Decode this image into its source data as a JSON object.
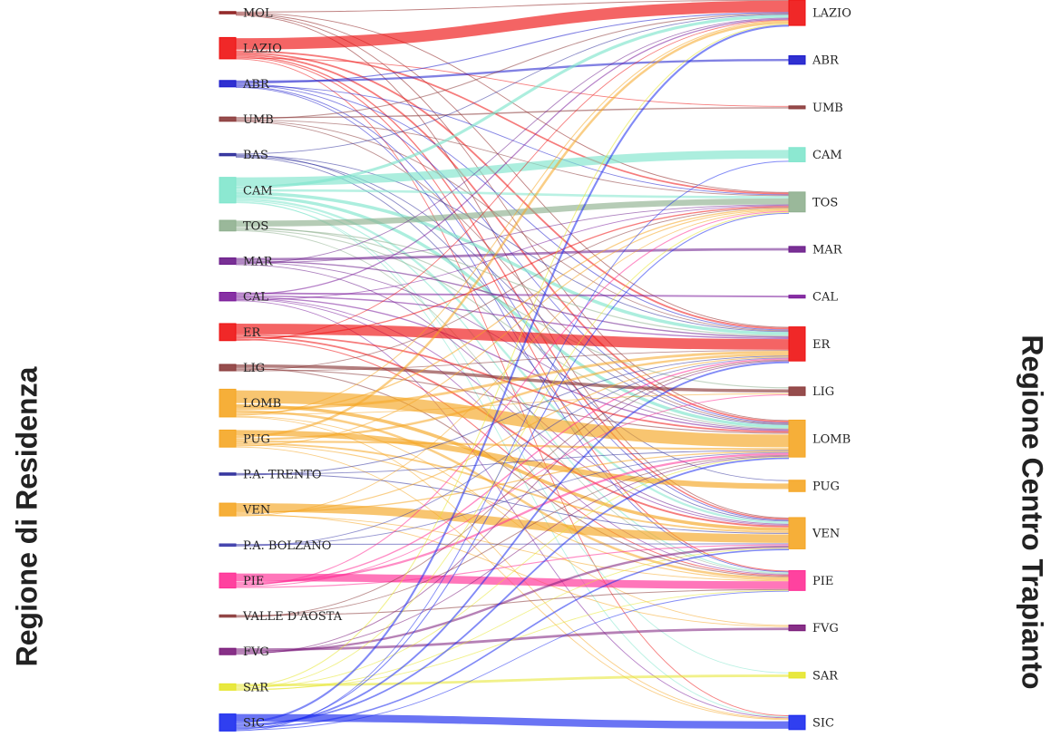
{
  "titles": {
    "left": "Regione di Residenza",
    "right": "Regione Centro Trapianto"
  },
  "chart_data": {
    "type": "sankey",
    "left_nodes": [
      {
        "id": "MOL",
        "label": "MOL",
        "color": "#8b1a1a",
        "value": 1
      },
      {
        "id": "LAZIO",
        "label": "LAZIO",
        "color": "#ee1111",
        "value": 10
      },
      {
        "id": "ABR",
        "label": "ABR",
        "color": "#1a1acc",
        "value": 3
      },
      {
        "id": "UMB",
        "label": "UMB",
        "color": "#8b3a3a",
        "value": 2
      },
      {
        "id": "BAS",
        "label": "BAS",
        "color": "#2a2a99",
        "value": 1
      },
      {
        "id": "CAM",
        "label": "CAM",
        "color": "#7fe5cc",
        "value": 12
      },
      {
        "id": "TOS",
        "label": "TOS",
        "color": "#8fb08f",
        "value": 5
      },
      {
        "id": "MAR",
        "label": "MAR",
        "color": "#6a1a8a",
        "value": 3
      },
      {
        "id": "CAL",
        "label": "CAL",
        "color": "#7a1a9a",
        "value": 4
      },
      {
        "id": "ER",
        "label": "ER",
        "color": "#ee1111",
        "value": 8
      },
      {
        "id": "LIG",
        "label": "LIG",
        "color": "#8b3a3a",
        "value": 3
      },
      {
        "id": "LOMB",
        "label": "LOMB",
        "color": "#f5a623",
        "value": 13
      },
      {
        "id": "PUG",
        "label": "PUG",
        "color": "#f5a623",
        "value": 8
      },
      {
        "id": "P.A. TRENTO",
        "label": "P.A. TRENTO",
        "color": "#2a2a99",
        "value": 1
      },
      {
        "id": "VEN",
        "label": "VEN",
        "color": "#f5a623",
        "value": 6
      },
      {
        "id": "P.A. BOLZANO",
        "label": "P.A. BOLZANO",
        "color": "#3a3aaa",
        "value": 1
      },
      {
        "id": "PIE",
        "label": "PIE",
        "color": "#ff2d95",
        "value": 7
      },
      {
        "id": "VALLE D'AOSTA",
        "label": "VALLE D'AOSTA",
        "color": "#8b3a3a",
        "value": 1
      },
      {
        "id": "FVG",
        "label": "FVG",
        "color": "#7a1a7a",
        "value": 3
      },
      {
        "id": "SAR",
        "label": "SAR",
        "color": "#e5e52a",
        "value": 3
      },
      {
        "id": "SIC",
        "label": "SIC",
        "color": "#1a2aee",
        "value": 8
      }
    ],
    "right_nodes": [
      {
        "id": "LAZIO",
        "label": "LAZIO",
        "color": "#ee1111",
        "value": 9
      },
      {
        "id": "ABR",
        "label": "ABR",
        "color": "#1a1acc",
        "value": 3
      },
      {
        "id": "UMB",
        "label": "UMB",
        "color": "#8b3a3a",
        "value": 1
      },
      {
        "id": "CAM",
        "label": "CAM",
        "color": "#7fe5cc",
        "value": 5
      },
      {
        "id": "TOS",
        "label": "TOS",
        "color": "#8fb08f",
        "value": 7
      },
      {
        "id": "MAR",
        "label": "MAR",
        "color": "#6a1a8a",
        "value": 2
      },
      {
        "id": "CAL",
        "label": "CAL",
        "color": "#7a1a9a",
        "value": 1
      },
      {
        "id": "ER",
        "label": "ER",
        "color": "#ee1111",
        "value": 12
      },
      {
        "id": "LIG",
        "label": "LIG",
        "color": "#8b3a3a",
        "value": 3
      },
      {
        "id": "LOMB",
        "label": "LOMB",
        "color": "#f5a623",
        "value": 13
      },
      {
        "id": "PUG",
        "label": "PUG",
        "color": "#f5a623",
        "value": 4
      },
      {
        "id": "VEN",
        "label": "VEN",
        "color": "#f5a623",
        "value": 11
      },
      {
        "id": "PIE",
        "label": "PIE",
        "color": "#ff2d95",
        "value": 7
      },
      {
        "id": "FVG",
        "label": "FVG",
        "color": "#7a1a7a",
        "value": 2
      },
      {
        "id": "SAR",
        "label": "SAR",
        "color": "#e5e52a",
        "value": 2
      },
      {
        "id": "SIC",
        "label": "SIC",
        "color": "#1a2aee",
        "value": 5
      }
    ],
    "links": [
      {
        "source": "MOL",
        "target": "LAZIO",
        "value": 0.3
      },
      {
        "source": "MOL",
        "target": "TOS",
        "value": 0.2
      },
      {
        "source": "MOL",
        "target": "ER",
        "value": 0.2
      },
      {
        "source": "MOL",
        "target": "LOMB",
        "value": 0.2
      },
      {
        "source": "MOL",
        "target": "VEN",
        "value": 0.1
      },
      {
        "source": "LAZIO",
        "target": "LAZIO",
        "value": 6
      },
      {
        "source": "LAZIO",
        "target": "TOS",
        "value": 0.8
      },
      {
        "source": "LAZIO",
        "target": "ER",
        "value": 0.8
      },
      {
        "source": "LAZIO",
        "target": "LOMB",
        "value": 0.8
      },
      {
        "source": "LAZIO",
        "target": "VEN",
        "value": 0.6
      },
      {
        "source": "LAZIO",
        "target": "PIE",
        "value": 0.5
      },
      {
        "source": "LAZIO",
        "target": "UMB",
        "value": 0.3
      },
      {
        "source": "LAZIO",
        "target": "SIC",
        "value": 0.2
      },
      {
        "source": "ABR",
        "target": "ABR",
        "value": 1
      },
      {
        "source": "ABR",
        "target": "LAZIO",
        "value": 0.5
      },
      {
        "source": "ABR",
        "target": "ER",
        "value": 0.4
      },
      {
        "source": "ABR",
        "target": "LOMB",
        "value": 0.3
      },
      {
        "source": "ABR",
        "target": "TOS",
        "value": 0.3
      },
      {
        "source": "ABR",
        "target": "VEN",
        "value": 0.3
      },
      {
        "source": "ABR",
        "target": "PIE",
        "value": 0.2
      },
      {
        "source": "UMB",
        "target": "UMB",
        "value": 0.6
      },
      {
        "source": "UMB",
        "target": "LAZIO",
        "value": 0.5
      },
      {
        "source": "UMB",
        "target": "TOS",
        "value": 0.4
      },
      {
        "source": "UMB",
        "target": "ER",
        "value": 0.3
      },
      {
        "source": "UMB",
        "target": "LOMB",
        "value": 0.2
      },
      {
        "source": "BAS",
        "target": "LAZIO",
        "value": 0.2
      },
      {
        "source": "BAS",
        "target": "PUG",
        "value": 0.2
      },
      {
        "source": "BAS",
        "target": "ER",
        "value": 0.2
      },
      {
        "source": "BAS",
        "target": "LOMB",
        "value": 0.2
      },
      {
        "source": "BAS",
        "target": "VEN",
        "value": 0.2
      },
      {
        "source": "CAM",
        "target": "CAM",
        "value": 4
      },
      {
        "source": "CAM",
        "target": "LAZIO",
        "value": 1.5
      },
      {
        "source": "CAM",
        "target": "TOS",
        "value": 1.2
      },
      {
        "source": "CAM",
        "target": "ER",
        "value": 1.5
      },
      {
        "source": "CAM",
        "target": "LOMB",
        "value": 1.5
      },
      {
        "source": "CAM",
        "target": "VEN",
        "value": 1
      },
      {
        "source": "CAM",
        "target": "PIE",
        "value": 0.6
      },
      {
        "source": "CAM",
        "target": "SIC",
        "value": 0.4
      },
      {
        "source": "CAM",
        "target": "SAR",
        "value": 0.3
      },
      {
        "source": "TOS",
        "target": "TOS",
        "value": 3
      },
      {
        "source": "TOS",
        "target": "LIG",
        "value": 0.5
      },
      {
        "source": "TOS",
        "target": "ER",
        "value": 0.5
      },
      {
        "source": "TOS",
        "target": "LOMB",
        "value": 0.5
      },
      {
        "source": "TOS",
        "target": "PIE",
        "value": 0.3
      },
      {
        "source": "MAR",
        "target": "MAR",
        "value": 1.2
      },
      {
        "source": "MAR",
        "target": "ER",
        "value": 0.6
      },
      {
        "source": "MAR",
        "target": "LOMB",
        "value": 0.4
      },
      {
        "source": "MAR",
        "target": "TOS",
        "value": 0.3
      },
      {
        "source": "MAR",
        "target": "LAZIO",
        "value": 0.3
      },
      {
        "source": "MAR",
        "target": "VEN",
        "value": 0.2
      },
      {
        "source": "CAL",
        "target": "CAL",
        "value": 0.8
      },
      {
        "source": "CAL",
        "target": "LAZIO",
        "value": 0.6
      },
      {
        "source": "CAL",
        "target": "ER",
        "value": 0.6
      },
      {
        "source": "CAL",
        "target": "LOMB",
        "value": 0.6
      },
      {
        "source": "CAL",
        "target": "VEN",
        "value": 0.4
      },
      {
        "source": "CAL",
        "target": "PIE",
        "value": 0.4
      },
      {
        "source": "CAL",
        "target": "TOS",
        "value": 0.3
      },
      {
        "source": "CAL",
        "target": "SIC",
        "value": 0.3
      },
      {
        "source": "ER",
        "target": "ER",
        "value": 5
      },
      {
        "source": "ER",
        "target": "LOMB",
        "value": 0.8
      },
      {
        "source": "ER",
        "target": "VEN",
        "value": 0.8
      },
      {
        "source": "ER",
        "target": "TOS",
        "value": 0.6
      },
      {
        "source": "ER",
        "target": "PIE",
        "value": 0.5
      },
      {
        "source": "ER",
        "target": "LAZIO",
        "value": 0.3
      },
      {
        "source": "LIG",
        "target": "LIG",
        "value": 1.5
      },
      {
        "source": "LIG",
        "target": "PIE",
        "value": 0.5
      },
      {
        "source": "LIG",
        "target": "LOMB",
        "value": 0.5
      },
      {
        "source": "LIG",
        "target": "TOS",
        "value": 0.3
      },
      {
        "source": "LIG",
        "target": "ER",
        "value": 0.2
      },
      {
        "source": "LOMB",
        "target": "LOMB",
        "value": 7
      },
      {
        "source": "LOMB",
        "target": "VEN",
        "value": 1.5
      },
      {
        "source": "LOMB",
        "target": "ER",
        "value": 1.2
      },
      {
        "source": "LOMB",
        "target": "PIE",
        "value": 1.2
      },
      {
        "source": "LOMB",
        "target": "TOS",
        "value": 0.6
      },
      {
        "source": "LOMB",
        "target": "LIG",
        "value": 0.3
      },
      {
        "source": "LOMB",
        "target": "LAZIO",
        "value": 0.5
      },
      {
        "source": "LOMB",
        "target": "FVG",
        "value": 0.3
      },
      {
        "source": "LOMB",
        "target": "SIC",
        "value": 0.3
      },
      {
        "source": "PUG",
        "target": "PUG",
        "value": 2.5
      },
      {
        "source": "PUG",
        "target": "LAZIO",
        "value": 1.2
      },
      {
        "source": "PUG",
        "target": "ER",
        "value": 1
      },
      {
        "source": "PUG",
        "target": "LOMB",
        "value": 1
      },
      {
        "source": "PUG",
        "target": "VEN",
        "value": 0.8
      },
      {
        "source": "PUG",
        "target": "PIE",
        "value": 0.5
      },
      {
        "source": "PUG",
        "target": "TOS",
        "value": 0.5
      },
      {
        "source": "PUG",
        "target": "SIC",
        "value": 0.2
      },
      {
        "source": "P.A. TRENTO",
        "target": "VEN",
        "value": 0.4
      },
      {
        "source": "P.A. TRENTO",
        "target": "LOMB",
        "value": 0.3
      },
      {
        "source": "P.A. TRENTO",
        "target": "ER",
        "value": 0.3
      },
      {
        "source": "VEN",
        "target": "VEN",
        "value": 4
      },
      {
        "source": "VEN",
        "target": "LOMB",
        "value": 0.6
      },
      {
        "source": "VEN",
        "target": "ER",
        "value": 0.5
      },
      {
        "source": "VEN",
        "target": "FVG",
        "value": 0.4
      },
      {
        "source": "VEN",
        "target": "PIE",
        "value": 0.3
      },
      {
        "source": "VEN",
        "target": "TOS",
        "value": 0.2
      },
      {
        "source": "P.A. BOLZANO",
        "target": "VEN",
        "value": 0.4
      },
      {
        "source": "P.A. BOLZANO",
        "target": "LOMB",
        "value": 0.3
      },
      {
        "source": "P.A. BOLZANO",
        "target": "ER",
        "value": 0.2
      },
      {
        "source": "PIE",
        "target": "PIE",
        "value": 4
      },
      {
        "source": "PIE",
        "target": "LOMB",
        "value": 1
      },
      {
        "source": "PIE",
        "target": "ER",
        "value": 0.6
      },
      {
        "source": "PIE",
        "target": "TOS",
        "value": 0.5
      },
      {
        "source": "PIE",
        "target": "LIG",
        "value": 0.4
      },
      {
        "source": "PIE",
        "target": "VEN",
        "value": 0.5
      },
      {
        "source": "VALLE D'AOSTA",
        "target": "PIE",
        "value": 0.5
      },
      {
        "source": "VALLE D'AOSTA",
        "target": "LOMB",
        "value": 0.3
      },
      {
        "source": "VALLE D'AOSTA",
        "target": "ER",
        "value": 0.2
      },
      {
        "source": "FVG",
        "target": "FVG",
        "value": 1.2
      },
      {
        "source": "FVG",
        "target": "VEN",
        "value": 1
      },
      {
        "source": "FVG",
        "target": "LOMB",
        "value": 0.4
      },
      {
        "source": "FVG",
        "target": "ER",
        "value": 0.4
      },
      {
        "source": "SAR",
        "target": "SAR",
        "value": 1.2
      },
      {
        "source": "SAR",
        "target": "LAZIO",
        "value": 0.5
      },
      {
        "source": "SAR",
        "target": "LOMB",
        "value": 0.4
      },
      {
        "source": "SAR",
        "target": "TOS",
        "value": 0.3
      },
      {
        "source": "SAR",
        "target": "PIE",
        "value": 0.3
      },
      {
        "source": "SAR",
        "target": "VEN",
        "value": 0.3
      },
      {
        "source": "SIC",
        "target": "SIC",
        "value": 3.5
      },
      {
        "source": "SIC",
        "target": "LAZIO",
        "value": 1
      },
      {
        "source": "SIC",
        "target": "LOMB",
        "value": 0.8
      },
      {
        "source": "SIC",
        "target": "ER",
        "value": 0.8
      },
      {
        "source": "SIC",
        "target": "VEN",
        "value": 0.7
      },
      {
        "source": "SIC",
        "target": "TOS",
        "value": 0.5
      },
      {
        "source": "SIC",
        "target": "PIE",
        "value": 0.4
      },
      {
        "source": "SIC",
        "target": "CAM",
        "value": 0.3
      }
    ]
  }
}
